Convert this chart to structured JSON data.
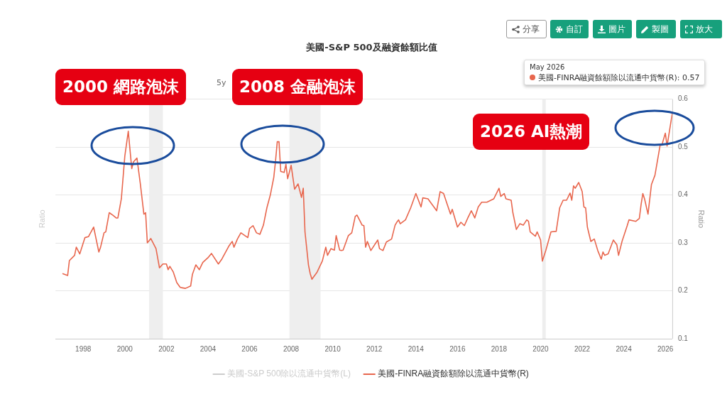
{
  "chart_data": {
    "type": "line",
    "title": "美國-S&P 500及融資餘額比值",
    "ylabel": "Ratio",
    "y2label": "Ratio",
    "x": [
      "1997-01",
      "1997-04",
      "1997-05",
      "1997-08",
      "1997-09",
      "1997-11",
      "1998-02",
      "1998-04",
      "1998-07",
      "1998-10",
      "1998-11",
      "1999-01",
      "1999-02",
      "1999-04",
      "1999-06",
      "1999-08",
      "1999-09",
      "1999-11",
      "2000-01",
      "2000-03",
      "2000-05",
      "2000-06",
      "2000-08",
      "2000-10",
      "2000-12",
      "2001-01",
      "2001-02",
      "2001-04",
      "2001-07",
      "2001-09",
      "2001-11",
      "2002-01",
      "2002-02",
      "2002-03",
      "2002-05",
      "2002-07",
      "2002-09",
      "2002-12",
      "2003-03",
      "2003-04",
      "2003-06",
      "2003-08",
      "2003-10",
      "2004-01",
      "2004-03",
      "2004-07",
      "2004-09",
      "2005-01",
      "2005-03",
      "2005-04",
      "2005-06",
      "2005-08",
      "2005-12",
      "2006-01",
      "2006-03",
      "2006-05",
      "2006-07",
      "2006-09",
      "2006-11",
      "2007-01",
      "2007-03",
      "2007-04",
      "2007-05",
      "2007-06",
      "2007-07",
      "2007-09",
      "2007-10",
      "2007-11",
      "2008-01",
      "2008-03",
      "2008-05",
      "2008-07",
      "2008-08",
      "2008-09",
      "2008-11",
      "2008-12",
      "2009-01",
      "2009-04",
      "2009-07",
      "2009-09",
      "2009-10",
      "2009-12",
      "2010-02",
      "2010-03",
      "2010-05",
      "2010-06",
      "2010-07",
      "2010-10",
      "2010-12",
      "2011-02",
      "2011-03",
      "2011-06",
      "2011-07",
      "2011-08",
      "2011-09",
      "2011-11",
      "2012-03",
      "2012-04",
      "2012-06",
      "2012-08",
      "2012-11",
      "2013-01",
      "2013-02",
      "2013-03",
      "2013-04",
      "2013-07",
      "2013-10",
      "2014-01",
      "2014-04",
      "2014-05",
      "2014-08",
      "2014-10",
      "2015-01",
      "2015-03",
      "2015-05",
      "2015-09",
      "2015-10",
      "2016-01",
      "2016-03",
      "2016-05",
      "2016-07",
      "2016-09",
      "2016-10",
      "2016-11",
      "2017-01",
      "2017-03",
      "2017-06",
      "2017-10",
      "2018-01",
      "2018-02",
      "2018-04",
      "2018-05",
      "2018-08",
      "2018-09",
      "2018-11",
      "2019-01",
      "2019-03",
      "2019-05",
      "2019-06",
      "2019-07",
      "2019-10",
      "2019-11",
      "2020-01",
      "2020-02",
      "2020-04",
      "2020-07",
      "2020-10",
      "2020-12",
      "2021-02",
      "2021-04",
      "2021-06",
      "2021-07",
      "2021-08",
      "2021-09",
      "2021-11",
      "2022-01",
      "2022-02",
      "2022-03",
      "2022-04",
      "2022-06",
      "2022-08",
      "2022-10",
      "2022-12",
      "2023-01",
      "2023-02",
      "2023-04",
      "2023-07",
      "2023-09",
      "2023-10",
      "2023-12",
      "2024-03",
      "2024-04",
      "2024-08",
      "2024-10",
      "2024-11",
      "2024-12",
      "2025-01",
      "2025-03",
      "2025-05",
      "2025-07",
      "2025-10",
      "2025-11",
      "2026-01",
      "2026-02",
      "2026-05"
    ],
    "series": [
      {
        "name": "美國-S&P 500除以流通中貨幣(L)",
        "color": "#cccccc",
        "values": [
          null,
          null,
          null,
          null,
          null,
          null,
          null,
          null,
          null,
          null,
          null,
          null,
          null,
          null,
          null,
          null,
          null,
          null,
          null,
          null,
          null,
          null,
          null,
          null,
          null,
          null,
          null,
          null,
          null,
          null,
          null,
          null,
          null,
          null,
          null,
          null,
          null,
          null,
          null,
          null,
          null,
          null,
          null,
          null,
          null,
          null,
          null,
          null,
          null,
          null,
          null,
          null,
          null,
          null,
          null,
          null,
          null,
          null,
          null,
          null,
          null,
          null,
          null,
          null,
          null,
          null,
          null,
          null,
          null,
          null,
          null,
          null,
          null,
          null,
          null,
          null,
          null,
          null,
          null,
          null,
          null,
          null,
          null,
          null,
          null,
          null,
          null,
          null,
          null,
          null,
          null,
          null,
          null,
          null,
          null,
          null,
          null,
          null,
          null,
          null,
          null,
          null,
          null,
          null,
          null,
          null,
          null,
          null,
          null,
          null,
          null,
          null,
          null,
          null,
          null,
          null,
          null,
          null,
          null,
          null,
          null,
          null,
          null,
          null,
          null,
          null,
          null,
          null,
          null,
          null,
          null,
          null,
          null,
          null,
          null,
          null,
          null,
          null,
          null,
          null,
          null,
          null,
          null,
          null,
          null,
          null,
          null,
          null,
          null,
          null,
          null,
          null,
          null,
          null,
          null,
          null,
          null,
          null,
          null,
          null,
          null,
          null,
          null,
          null,
          null,
          null,
          null,
          null,
          null,
          null,
          null,
          null,
          null,
          null,
          null,
          null,
          null,
          null,
          null,
          null,
          null,
          null,
          null,
          null,
          null
        ]
      },
      {
        "name": "美國-FINRA融資餘額除以流通中貨幣(R)",
        "color": "#e8664d",
        "axis": "y2",
        "values": [
          0.236,
          0.232,
          0.263,
          0.274,
          0.291,
          0.277,
          0.311,
          0.313,
          0.333,
          0.281,
          0.291,
          0.321,
          0.323,
          0.363,
          0.358,
          0.352,
          0.352,
          0.392,
          0.481,
          0.533,
          0.455,
          0.469,
          0.477,
          0.422,
          0.36,
          0.363,
          0.3,
          0.309,
          0.288,
          0.248,
          0.256,
          0.256,
          0.244,
          0.251,
          0.239,
          0.217,
          0.207,
          0.205,
          0.21,
          0.234,
          0.254,
          0.244,
          0.259,
          0.269,
          0.278,
          0.256,
          0.266,
          0.293,
          0.303,
          0.291,
          0.308,
          0.321,
          0.311,
          0.33,
          0.336,
          0.321,
          0.318,
          0.337,
          0.373,
          0.4,
          0.437,
          0.471,
          0.511,
          0.511,
          0.449,
          0.447,
          0.464,
          0.434,
          0.462,
          0.412,
          0.423,
          0.395,
          0.414,
          0.323,
          0.254,
          0.236,
          0.224,
          0.239,
          0.262,
          0.291,
          0.274,
          0.288,
          0.285,
          0.315,
          0.285,
          0.284,
          0.285,
          0.315,
          0.321,
          0.355,
          0.358,
          0.337,
          0.336,
          0.291,
          0.303,
          0.284,
          0.306,
          0.288,
          0.284,
          0.302,
          0.308,
          0.337,
          0.343,
          0.348,
          0.34,
          0.348,
          0.373,
          0.403,
          0.375,
          0.394,
          0.392,
          0.382,
          0.367,
          0.407,
          0.403,
          0.36,
          0.37,
          0.333,
          0.343,
          0.336,
          0.352,
          0.367,
          0.36,
          0.352,
          0.375,
          0.385,
          0.385,
          0.392,
          0.414,
          0.397,
          0.403,
          0.392,
          0.389,
          0.363,
          0.328,
          0.34,
          0.337,
          0.348,
          0.345,
          0.323,
          0.314,
          0.323,
          0.306,
          0.262,
          0.284,
          0.323,
          0.324,
          0.373,
          0.389,
          0.389,
          0.404,
          0.389,
          0.419,
          0.414,
          0.426,
          0.407,
          0.375,
          0.373,
          0.333,
          0.303,
          0.308,
          0.284,
          0.266,
          0.281,
          0.274,
          0.277,
          0.306,
          0.296,
          0.274,
          0.303,
          0.336,
          0.348,
          0.345,
          0.351,
          0.38,
          0.403,
          0.392,
          0.36,
          0.422,
          0.441,
          0.504,
          0.504,
          0.529,
          0.502,
          0.57
        ]
      }
    ],
    "xlim": [
      "1996-09",
      "2026-05"
    ],
    "xticks": [
      "1998",
      "2000",
      "2002",
      "2004",
      "2006",
      "2008",
      "2010",
      "2012",
      "2014",
      "2016",
      "2018",
      "2020",
      "2022",
      "2024",
      "2026"
    ],
    "y2lim": [
      0.1,
      0.6
    ],
    "y2ticks": [
      0.1,
      0.2,
      0.3,
      0.4,
      0.5,
      0.6
    ],
    "bands": [
      {
        "axis": "x",
        "from": "2001-03",
        "to": "2001-11",
        "color": "#eeeeee"
      },
      {
        "axis": "x",
        "from": "2007-12",
        "to": "2009-06",
        "color": "#eeeeee"
      },
      {
        "axis": "x",
        "from": "2020-02",
        "to": "2020-04",
        "color": "#eeeeee"
      }
    ],
    "annotations": [
      "5y",
      "分享",
      "自訂",
      "圖片",
      "製圖",
      "放大",
      "May 2026",
      "美國-FINRA融資餘額除以流通中貨幣(R): 0.57",
      "2000 網路泡沫",
      "2008 金融泡沫",
      "2026 AI熱潮"
    ],
    "grid": "y",
    "legend": "bottom",
    "marker": "none",
    "line_style": "solid"
  }
}
